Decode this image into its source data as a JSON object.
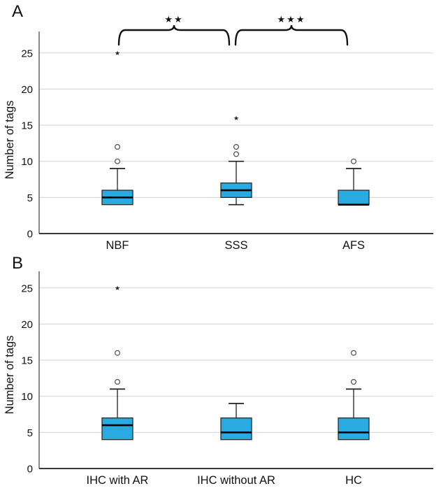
{
  "colors": {
    "box_fill": "#29ABE2",
    "gridline": "#D7D7D7",
    "axis_y": "#6E6E6E",
    "axis_x": "#1F1F1F",
    "line": "#1F1F1F",
    "box_stroke": "#2B2B2B",
    "outlier": "#4A4A4A",
    "text": "#111111"
  },
  "chart_data": [
    {
      "type": "box",
      "panel_label": "A",
      "title": "",
      "xlabel": "",
      "ylabel": "Number of tags",
      "categories": [
        "NBF",
        "SSS",
        "AFS"
      ],
      "yticks": [
        0,
        5,
        10,
        15,
        20,
        25
      ],
      "ylim": [
        0,
        28
      ],
      "grid": true,
      "legend": "none",
      "box_fill": "#29ABE2",
      "boxes": [
        {
          "category": "NBF",
          "q1": 4,
          "median": 5,
          "q3": 6,
          "whisker_low": null,
          "whisker_high": 9,
          "circle_outliers": [
            10,
            12
          ],
          "star_outliers": [
            25
          ]
        },
        {
          "category": "SSS",
          "q1": 5,
          "median": 6,
          "q3": 7,
          "whisker_low": 4,
          "whisker_high": 10,
          "circle_outliers": [
            11,
            12
          ],
          "star_outliers": [
            16
          ]
        },
        {
          "category": "AFS",
          "q1": 4,
          "median": 4,
          "q3": 6,
          "whisker_low": null,
          "whisker_high": 9,
          "circle_outliers": [
            10
          ],
          "star_outliers": []
        }
      ],
      "significance_brackets": [
        {
          "from": "NBF",
          "to": "SSS",
          "label": "**"
        },
        {
          "from": "SSS",
          "to": "AFS",
          "label": "***"
        }
      ]
    },
    {
      "type": "box",
      "panel_label": "B",
      "title": "",
      "xlabel": "",
      "ylabel": "Number of tags",
      "categories": [
        "IHC with AR",
        "IHC without AR",
        "HC"
      ],
      "yticks": [
        0,
        5,
        10,
        15,
        20,
        25
      ],
      "ylim": [
        0,
        28
      ],
      "grid": true,
      "legend": "none",
      "box_fill": "#29ABE2",
      "boxes": [
        {
          "category": "IHC with AR",
          "q1": 4,
          "median": 6,
          "q3": 7,
          "whisker_low": null,
          "whisker_high": 11,
          "circle_outliers": [
            12,
            16
          ],
          "star_outliers": [
            25
          ]
        },
        {
          "category": "IHC without AR",
          "q1": 4,
          "median": 5,
          "q3": 7,
          "whisker_low": null,
          "whisker_high": 9,
          "circle_outliers": [],
          "star_outliers": []
        },
        {
          "category": "HC",
          "q1": 4,
          "median": 5,
          "q3": 7,
          "whisker_low": null,
          "whisker_high": 11,
          "circle_outliers": [
            12,
            16
          ],
          "star_outliers": []
        }
      ],
      "significance_brackets": []
    }
  ]
}
